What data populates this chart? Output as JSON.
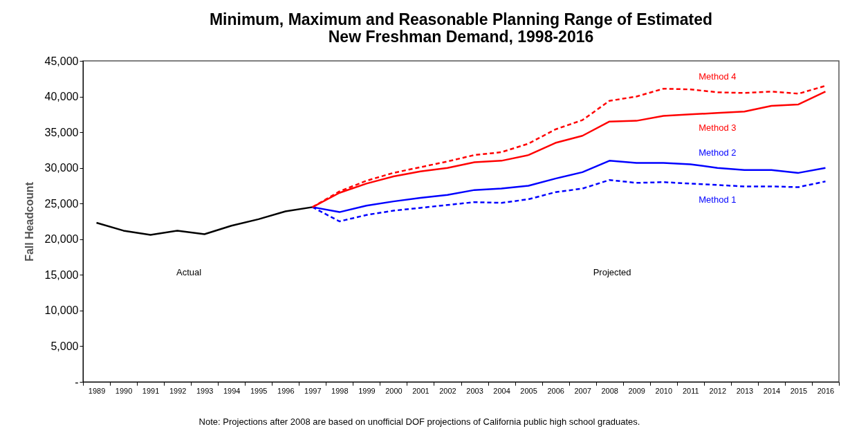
{
  "chart_data": {
    "type": "line",
    "title": [
      "Minimum, Maximum and Reasonable Planning Range of Estimated",
      "New Freshman Demand, 1998-2016"
    ],
    "ylabel": "Fall Headcount",
    "categories": [
      "1989",
      "1990",
      "1991",
      "1992",
      "1993",
      "1994",
      "1995",
      "1996",
      "1997",
      "1998",
      "1999",
      "2000",
      "2001",
      "2002",
      "2003",
      "2004",
      "2005",
      "2006",
      "2007",
      "2008",
      "2009",
      "2010",
      "2011",
      "2012",
      "2013",
      "2014",
      "2015",
      "2016"
    ],
    "series": [
      {
        "color": "#000000",
        "line_style": "solid",
        "values": [
          22300,
          21200,
          20600,
          21200,
          20700,
          21900,
          22800,
          23900,
          24500,
          null,
          null,
          null,
          null,
          null,
          null,
          null,
          null,
          null,
          null,
          null,
          null,
          null,
          null,
          null,
          null,
          null,
          null,
          null
        ]
      },
      {
        "name": "Method 1",
        "color": "#0000ff",
        "line_style": "dashed",
        "values": [
          null,
          null,
          null,
          null,
          null,
          null,
          null,
          null,
          24500,
          22500,
          23400,
          24000,
          24400,
          24800,
          25200,
          25100,
          25600,
          26600,
          27100,
          28300,
          27900,
          28000,
          27800,
          27600,
          27400,
          27400,
          27300,
          28100
        ]
      },
      {
        "name": "Method 2",
        "color": "#0000ff",
        "line_style": "solid",
        "values": [
          null,
          null,
          null,
          null,
          null,
          null,
          null,
          null,
          24500,
          23800,
          24700,
          25300,
          25800,
          26200,
          26900,
          27100,
          27500,
          28500,
          29400,
          31000,
          30700,
          30700,
          30500,
          30000,
          29700,
          29700,
          29300,
          30000
        ]
      },
      {
        "name": "Method 3",
        "color": "#ff0000",
        "line_style": "solid",
        "values": [
          null,
          null,
          null,
          null,
          null,
          null,
          null,
          null,
          24500,
          26500,
          27800,
          28800,
          29500,
          30000,
          30800,
          31000,
          31800,
          33500,
          34500,
          36500,
          36600,
          37300,
          37500,
          37700,
          37900,
          38700,
          38900,
          40700
        ]
      },
      {
        "name": "Method 4",
        "color": "#ff0000",
        "line_style": "dashed",
        "values": [
          null,
          null,
          null,
          null,
          null,
          null,
          null,
          null,
          24500,
          26700,
          28200,
          29300,
          30100,
          30900,
          31800,
          32200,
          33400,
          35400,
          36700,
          39400,
          40000,
          41100,
          41000,
          40600,
          40500,
          40700,
          40400,
          41500
        ]
      }
    ],
    "ylim": [
      0,
      45000
    ],
    "yticks": [
      {
        "value": 0,
        "label": "-"
      },
      {
        "value": 5000,
        "label": "5,000"
      },
      {
        "value": 10000,
        "label": "10,000"
      },
      {
        "value": 15000,
        "label": "15,000"
      },
      {
        "value": 20000,
        "label": "20,000"
      },
      {
        "value": 25000,
        "label": "25,000"
      },
      {
        "value": 30000,
        "label": "30,000"
      },
      {
        "value": 35000,
        "label": "35,000"
      },
      {
        "value": 40000,
        "label": "40,000"
      },
      {
        "value": 45000,
        "label": "45,000"
      }
    ],
    "grid": false,
    "annotations": [
      "Actual",
      "Projected",
      "Note: Projections after 2008 are based on unofficial DOF projections of California public high school graduates."
    ]
  }
}
